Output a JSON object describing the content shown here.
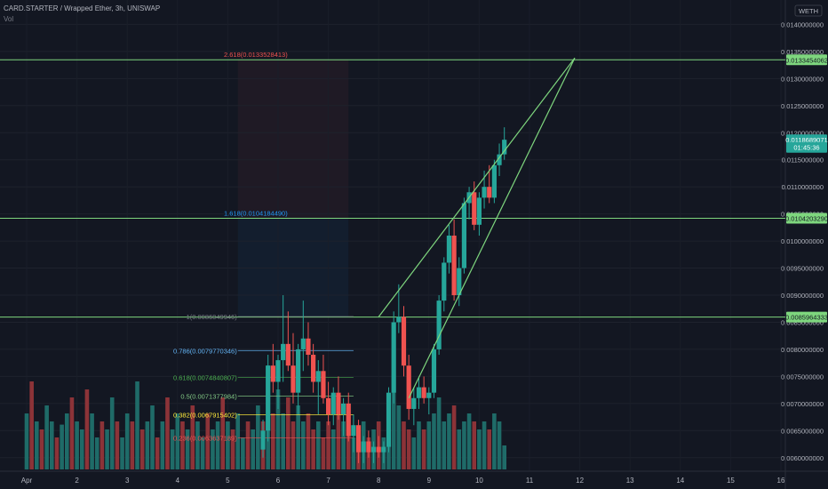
{
  "header": {
    "title": "CARD.STARTER / Wrapped Ether, 3h, UNISWAP",
    "vol_label": "Vol",
    "quote_badge": "WETH"
  },
  "colors": {
    "background": "#131722",
    "bull": "#26a69a",
    "bear": "#ef5350",
    "vol_bull": "#1f6b68",
    "vol_bear": "#8c3338",
    "level": "#7ed67e",
    "channel": "#7ed67e",
    "price_tag": "#26a69a"
  },
  "chart_data": {
    "type": "candlestick",
    "title": "CARD.STARTER / Wrapped Ether, 3h, UNISWAP",
    "x_ticks": [
      "Apr",
      "2",
      "3",
      "4",
      "5",
      "6",
      "7",
      "8",
      "9",
      "10",
      "11",
      "12",
      "13",
      "14",
      "15",
      "16"
    ],
    "y_ticks": [
      "0.0140000000",
      "0.0135000000",
      "0.0130000000",
      "0.0125000000",
      "0.0120000000",
      "0.0115000000",
      "0.0110000000",
      "0.0105000000",
      "0.0100000000",
      "0.0095000000",
      "0.0090000000",
      "0.0085000000",
      "0.0080000000",
      "0.0075000000",
      "0.0070000000",
      "0.0065000000",
      "0.0060000000"
    ],
    "ylim": [
      0.00575,
      0.01445
    ],
    "grid": true,
    "price_tags": [
      {
        "label": "0.0133454062",
        "value": 0.0133454062,
        "color": "#7ed67e"
      },
      {
        "label": "0.0118689071",
        "value": 0.0118689071,
        "color": "#26a69a"
      },
      {
        "label": "01:45:36",
        "value": 0.01173,
        "color": "#26a69a"
      },
      {
        "label": "0.0104203290",
        "value": 0.010420329,
        "color": "#7ed67e"
      },
      {
        "label": "0.0085964333",
        "value": 0.0085964333,
        "color": "#7ed67e"
      }
    ],
    "horizontal_levels": [
      0.0133454062,
      0.010420329,
      0.0085964333
    ],
    "fib_extension": [
      {
        "label": "2.618(0.0133528413)",
        "value": 0.0133528413,
        "color": "#ef5350"
      },
      {
        "label": "1.618(0.0104184490)",
        "value": 0.010418449,
        "color": "#2196f3"
      }
    ],
    "fib_retracement": [
      {
        "label": "1(0.0086049946)",
        "value": 0.0086049946,
        "color": "#787b86"
      },
      {
        "label": "0.786(0.0079770346)",
        "value": 0.0079770346,
        "color": "#64b5f6"
      },
      {
        "label": "0.618(0.0074840807)",
        "value": 0.0074840807,
        "color": "#4caf50"
      },
      {
        "label": "0.5(0.0071377984)",
        "value": 0.0071377984,
        "color": "#81c784"
      },
      {
        "label": "0.382(0.0067915402)",
        "value": 0.0067915402,
        "color": "#ffeb3b"
      },
      {
        "label": "0.236(0.0063637189)",
        "value": 0.0063637189,
        "color": "#ef5350"
      }
    ],
    "channel": {
      "upper": [
        [
          "8.0",
          0.0086
        ],
        [
          "11.9",
          0.01338
        ]
      ],
      "lower": [
        [
          "8.6",
          0.0071
        ],
        [
          "11.9",
          0.01338
        ]
      ]
    },
    "candles": [
      {
        "t": 4.7,
        "o": 0.00615,
        "h": 0.0067,
        "l": 0.006,
        "c": 0.0065
      },
      {
        "t": 4.8,
        "o": 0.0065,
        "h": 0.0079,
        "l": 0.0063,
        "c": 0.0077
      },
      {
        "t": 4.9,
        "o": 0.0077,
        "h": 0.0081,
        "l": 0.0072,
        "c": 0.0074
      },
      {
        "t": 5.0,
        "o": 0.0074,
        "h": 0.0079,
        "l": 0.0069,
        "c": 0.0078
      },
      {
        "t": 5.1,
        "o": 0.0078,
        "h": 0.009,
        "l": 0.0074,
        "c": 0.0081
      },
      {
        "t": 5.2,
        "o": 0.0081,
        "h": 0.0087,
        "l": 0.0076,
        "c": 0.0077
      },
      {
        "t": 5.3,
        "o": 0.0077,
        "h": 0.0083,
        "l": 0.007,
        "c": 0.0072
      },
      {
        "t": 5.4,
        "o": 0.0072,
        "h": 0.0081,
        "l": 0.0068,
        "c": 0.008
      },
      {
        "t": 5.5,
        "o": 0.008,
        "h": 0.0089,
        "l": 0.0076,
        "c": 0.0082
      },
      {
        "t": 5.6,
        "o": 0.0082,
        "h": 0.0085,
        "l": 0.0077,
        "c": 0.0079
      },
      {
        "t": 5.7,
        "o": 0.0079,
        "h": 0.0081,
        "l": 0.0072,
        "c": 0.0074
      },
      {
        "t": 5.8,
        "o": 0.0074,
        "h": 0.0078,
        "l": 0.0068,
        "c": 0.0076
      },
      {
        "t": 5.9,
        "o": 0.0076,
        "h": 0.0079,
        "l": 0.007,
        "c": 0.0071
      },
      {
        "t": 6.0,
        "o": 0.0071,
        "h": 0.0074,
        "l": 0.0066,
        "c": 0.0068
      },
      {
        "t": 6.1,
        "o": 0.0068,
        "h": 0.0073,
        "l": 0.0066,
        "c": 0.0072
      },
      {
        "t": 6.2,
        "o": 0.0072,
        "h": 0.0075,
        "l": 0.0067,
        "c": 0.0068
      },
      {
        "t": 6.3,
        "o": 0.0068,
        "h": 0.0071,
        "l": 0.0064,
        "c": 0.007
      },
      {
        "t": 6.4,
        "o": 0.007,
        "h": 0.0072,
        "l": 0.0063,
        "c": 0.0064
      },
      {
        "t": 6.5,
        "o": 0.0064,
        "h": 0.0068,
        "l": 0.0061,
        "c": 0.0066
      },
      {
        "t": 6.6,
        "o": 0.0066,
        "h": 0.0067,
        "l": 0.0059,
        "c": 0.0061
      },
      {
        "t": 6.7,
        "o": 0.0061,
        "h": 0.0064,
        "l": 0.0059,
        "c": 0.0063
      },
      {
        "t": 6.8,
        "o": 0.0063,
        "h": 0.0065,
        "l": 0.006,
        "c": 0.0061
      },
      {
        "t": 6.9,
        "o": 0.0061,
        "h": 0.0063,
        "l": 0.0059,
        "c": 0.0062
      },
      {
        "t": 7.0,
        "o": 0.0062,
        "h": 0.0064,
        "l": 0.006,
        "c": 0.0061
      },
      {
        "t": 7.1,
        "o": 0.0061,
        "h": 0.0063,
        "l": 0.0059,
        "c": 0.0062
      },
      {
        "t": 7.2,
        "o": 0.0062,
        "h": 0.0073,
        "l": 0.0061,
        "c": 0.0072
      },
      {
        "t": 7.3,
        "o": 0.0072,
        "h": 0.0087,
        "l": 0.007,
        "c": 0.0085
      },
      {
        "t": 7.4,
        "o": 0.0085,
        "h": 0.0092,
        "l": 0.0083,
        "c": 0.0086
      },
      {
        "t": 7.5,
        "o": 0.0086,
        "h": 0.0088,
        "l": 0.0075,
        "c": 0.0077
      },
      {
        "t": 7.6,
        "o": 0.0077,
        "h": 0.0079,
        "l": 0.0067,
        "c": 0.0069
      },
      {
        "t": 7.7,
        "o": 0.0069,
        "h": 0.0073,
        "l": 0.0066,
        "c": 0.0071
      },
      {
        "t": 7.8,
        "o": 0.0071,
        "h": 0.0075,
        "l": 0.0069,
        "c": 0.0073
      },
      {
        "t": 7.9,
        "o": 0.0073,
        "h": 0.0075,
        "l": 0.007,
        "c": 0.0071
      },
      {
        "t": 8.0,
        "o": 0.0071,
        "h": 0.0073,
        "l": 0.0068,
        "c": 0.0072
      },
      {
        "t": 8.1,
        "o": 0.0072,
        "h": 0.0081,
        "l": 0.0071,
        "c": 0.008
      },
      {
        "t": 8.2,
        "o": 0.008,
        "h": 0.009,
        "l": 0.0079,
        "c": 0.0089
      },
      {
        "t": 8.3,
        "o": 0.0089,
        "h": 0.0097,
        "l": 0.0087,
        "c": 0.0096
      },
      {
        "t": 8.4,
        "o": 0.0096,
        "h": 0.0103,
        "l": 0.0094,
        "c": 0.0101
      },
      {
        "t": 8.5,
        "o": 0.0101,
        "h": 0.0104,
        "l": 0.0089,
        "c": 0.009
      },
      {
        "t": 8.6,
        "o": 0.009,
        "h": 0.0097,
        "l": 0.0088,
        "c": 0.0095
      },
      {
        "t": 8.7,
        "o": 0.0095,
        "h": 0.0108,
        "l": 0.0094,
        "c": 0.0107
      },
      {
        "t": 8.8,
        "o": 0.0107,
        "h": 0.011,
        "l": 0.0104,
        "c": 0.0109
      },
      {
        "t": 8.9,
        "o": 0.0109,
        "h": 0.0111,
        "l": 0.0102,
        "c": 0.0103
      },
      {
        "t": 9.0,
        "o": 0.0103,
        "h": 0.0109,
        "l": 0.0101,
        "c": 0.0108
      },
      {
        "t": 9.1,
        "o": 0.0108,
        "h": 0.0113,
        "l": 0.0106,
        "c": 0.011
      },
      {
        "t": 9.2,
        "o": 0.011,
        "h": 0.0114,
        "l": 0.0107,
        "c": 0.0108
      },
      {
        "t": 9.3,
        "o": 0.0108,
        "h": 0.0115,
        "l": 0.0107,
        "c": 0.0114
      },
      {
        "t": 9.4,
        "o": 0.0114,
        "h": 0.0118,
        "l": 0.0112,
        "c": 0.0116
      },
      {
        "t": 9.5,
        "o": 0.0116,
        "h": 0.0121,
        "l": 0.0115,
        "c": 0.01187
      }
    ],
    "volume": [
      {
        "t": 0.0,
        "v": 0.35,
        "up": true
      },
      {
        "t": 0.1,
        "v": 0.55,
        "up": false
      },
      {
        "t": 0.2,
        "v": 0.3,
        "up": true
      },
      {
        "t": 0.3,
        "v": 0.25,
        "up": false
      },
      {
        "t": 0.4,
        "v": 0.4,
        "up": true
      },
      {
        "t": 0.5,
        "v": 0.3,
        "up": true
      },
      {
        "t": 0.6,
        "v": 0.2,
        "up": false
      },
      {
        "t": 0.7,
        "v": 0.28,
        "up": true
      },
      {
        "t": 0.8,
        "v": 0.35,
        "up": true
      },
      {
        "t": 0.9,
        "v": 0.45,
        "up": false
      },
      {
        "t": 1.0,
        "v": 0.3,
        "up": true
      },
      {
        "t": 1.1,
        "v": 0.25,
        "up": true
      },
      {
        "t": 1.2,
        "v": 0.5,
        "up": false
      },
      {
        "t": 1.3,
        "v": 0.35,
        "up": true
      },
      {
        "t": 1.4,
        "v": 0.2,
        "up": true
      },
      {
        "t": 1.5,
        "v": 0.3,
        "up": false
      },
      {
        "t": 1.6,
        "v": 0.25,
        "up": true
      },
      {
        "t": 1.7,
        "v": 0.45,
        "up": true
      },
      {
        "t": 1.8,
        "v": 0.3,
        "up": false
      },
      {
        "t": 1.9,
        "v": 0.2,
        "up": true
      },
      {
        "t": 2.0,
        "v": 0.35,
        "up": true
      },
      {
        "t": 2.1,
        "v": 0.3,
        "up": false
      },
      {
        "t": 2.2,
        "v": 0.55,
        "up": true
      },
      {
        "t": 2.3,
        "v": 0.25,
        "up": false
      },
      {
        "t": 2.4,
        "v": 0.3,
        "up": true
      },
      {
        "t": 2.5,
        "v": 0.4,
        "up": true
      },
      {
        "t": 2.6,
        "v": 0.2,
        "up": false
      },
      {
        "t": 2.7,
        "v": 0.3,
        "up": true
      },
      {
        "t": 2.8,
        "v": 0.45,
        "up": false
      },
      {
        "t": 2.9,
        "v": 0.25,
        "up": true
      },
      {
        "t": 3.0,
        "v": 0.35,
        "up": true
      },
      {
        "t": 3.1,
        "v": 0.3,
        "up": false
      },
      {
        "t": 3.2,
        "v": 0.25,
        "up": true
      },
      {
        "t": 3.3,
        "v": 0.4,
        "up": false
      },
      {
        "t": 3.4,
        "v": 0.3,
        "up": true
      },
      {
        "t": 3.5,
        "v": 0.2,
        "up": true
      },
      {
        "t": 3.6,
        "v": 0.35,
        "up": false
      },
      {
        "t": 3.7,
        "v": 0.25,
        "up": true
      },
      {
        "t": 3.8,
        "v": 0.3,
        "up": true
      },
      {
        "t": 3.9,
        "v": 0.45,
        "up": false
      },
      {
        "t": 4.0,
        "v": 0.3,
        "up": true
      },
      {
        "t": 4.1,
        "v": 0.25,
        "up": false
      },
      {
        "t": 4.2,
        "v": 0.35,
        "up": true
      },
      {
        "t": 4.3,
        "v": 0.2,
        "up": true
      },
      {
        "t": 4.4,
        "v": 0.3,
        "up": false
      },
      {
        "t": 4.5,
        "v": 0.25,
        "up": true
      },
      {
        "t": 4.6,
        "v": 0.4,
        "up": true
      },
      {
        "t": 4.7,
        "v": 0.3,
        "up": false
      },
      {
        "t": 4.8,
        "v": 0.65,
        "up": true
      },
      {
        "t": 4.9,
        "v": 0.35,
        "up": false
      },
      {
        "t": 5.0,
        "v": 0.5,
        "up": true
      },
      {
        "t": 5.1,
        "v": 0.35,
        "up": true
      },
      {
        "t": 5.2,
        "v": 0.45,
        "up": false
      },
      {
        "t": 5.3,
        "v": 0.3,
        "up": false
      },
      {
        "t": 5.4,
        "v": 0.4,
        "up": true
      },
      {
        "t": 5.5,
        "v": 0.3,
        "up": true
      },
      {
        "t": 5.6,
        "v": 0.35,
        "up": false
      },
      {
        "t": 5.7,
        "v": 0.25,
        "up": false
      },
      {
        "t": 5.8,
        "v": 0.3,
        "up": true
      },
      {
        "t": 5.9,
        "v": 0.2,
        "up": false
      },
      {
        "t": 6.0,
        "v": 0.3,
        "up": false
      },
      {
        "t": 6.1,
        "v": 0.25,
        "up": true
      },
      {
        "t": 6.2,
        "v": 0.35,
        "up": false
      },
      {
        "t": 6.3,
        "v": 0.3,
        "up": true
      },
      {
        "t": 6.4,
        "v": 0.25,
        "up": false
      },
      {
        "t": 6.5,
        "v": 0.2,
        "up": true
      },
      {
        "t": 6.6,
        "v": 0.25,
        "up": false
      },
      {
        "t": 6.7,
        "v": 0.3,
        "up": true
      },
      {
        "t": 6.8,
        "v": 0.2,
        "up": false
      },
      {
        "t": 6.9,
        "v": 0.25,
        "up": true
      },
      {
        "t": 7.0,
        "v": 0.3,
        "up": false
      },
      {
        "t": 7.1,
        "v": 0.2,
        "up": true
      },
      {
        "t": 7.2,
        "v": 0.35,
        "up": true
      },
      {
        "t": 7.3,
        "v": 0.6,
        "up": true
      },
      {
        "t": 7.4,
        "v": 0.4,
        "up": true
      },
      {
        "t": 7.5,
        "v": 0.3,
        "up": false
      },
      {
        "t": 7.6,
        "v": 0.25,
        "up": false
      },
      {
        "t": 7.7,
        "v": 0.2,
        "up": true
      },
      {
        "t": 7.8,
        "v": 0.3,
        "up": true
      },
      {
        "t": 7.9,
        "v": 0.25,
        "up": false
      },
      {
        "t": 8.0,
        "v": 0.3,
        "up": true
      },
      {
        "t": 8.1,
        "v": 0.35,
        "up": true
      },
      {
        "t": 8.2,
        "v": 0.45,
        "up": true
      },
      {
        "t": 8.3,
        "v": 0.3,
        "up": true
      },
      {
        "t": 8.4,
        "v": 0.35,
        "up": true
      },
      {
        "t": 8.5,
        "v": 0.4,
        "up": false
      },
      {
        "t": 8.6,
        "v": 0.25,
        "up": true
      },
      {
        "t": 8.7,
        "v": 0.3,
        "up": true
      },
      {
        "t": 8.8,
        "v": 0.35,
        "up": true
      },
      {
        "t": 8.9,
        "v": 0.3,
        "up": false
      },
      {
        "t": 9.0,
        "v": 0.25,
        "up": true
      },
      {
        "t": 9.1,
        "v": 0.3,
        "up": true
      },
      {
        "t": 9.2,
        "v": 0.25,
        "up": false
      },
      {
        "t": 9.3,
        "v": 0.35,
        "up": true
      },
      {
        "t": 9.4,
        "v": 0.3,
        "up": true
      },
      {
        "t": 9.5,
        "v": 0.15,
        "up": true
      }
    ]
  }
}
